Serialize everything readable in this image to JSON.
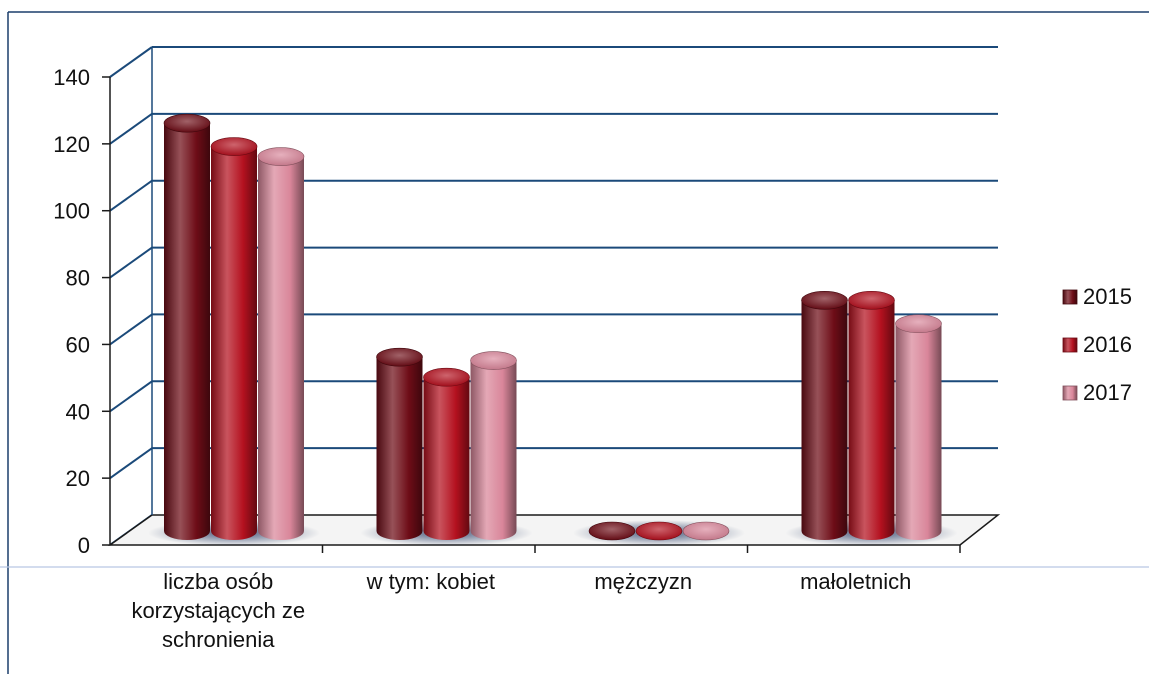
{
  "chart_data": {
    "type": "bar",
    "categories": [
      [
        "liczba osób",
        "korzystających ze",
        "schronienia"
      ],
      [
        "w tym: kobiet"
      ],
      [
        "mężczyzn"
      ],
      [
        "małoletnich"
      ]
    ],
    "series": [
      {
        "name": "2015",
        "color": "#6e0d17",
        "values": [
          122,
          52,
          0,
          69
        ]
      },
      {
        "name": "2016",
        "color": "#b4111f",
        "values": [
          115,
          46,
          0,
          69
        ]
      },
      {
        "name": "2017",
        "color": "#d9869a",
        "values": [
          112,
          51,
          0,
          62
        ]
      }
    ],
    "yticks": [
      "0",
      "20",
      "40",
      "60",
      "80",
      "100",
      "120",
      "140"
    ],
    "ylim": [
      0,
      140
    ],
    "title": "",
    "xlabel": "",
    "ylabel": "",
    "grid": true,
    "legend": "right",
    "gridColor": "#1b4a7a"
  }
}
